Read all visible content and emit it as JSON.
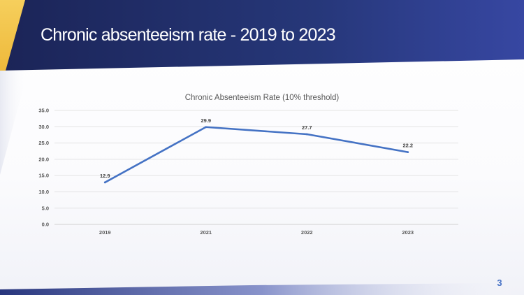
{
  "slide": {
    "title": "Chronic absenteeism rate - 2019 to 2023",
    "page_number": "3",
    "colors": {
      "header_dark": "#1e2a5e",
      "header_light": "#3b4aa0",
      "accent_gold": "#f2c34c",
      "line": "#4472c4",
      "page_number": "#4a74c6"
    }
  },
  "chart_data": {
    "type": "line",
    "title": "Chronic Absenteeism Rate (10% threshold)",
    "categories": [
      "2019",
      "2021",
      "2022",
      "2023"
    ],
    "series": [
      {
        "values": [
          12.9,
          29.9,
          27.7,
          22.2
        ],
        "labels": [
          "12.9",
          "29.9",
          "27.7",
          "22.2"
        ]
      }
    ],
    "y_ticks": [
      "0.0",
      "5.0",
      "10.0",
      "15.0",
      "20.0",
      "25.0",
      "30.0",
      "35.0"
    ],
    "ylim": [
      0,
      35
    ],
    "grid": true,
    "legend": "none"
  }
}
